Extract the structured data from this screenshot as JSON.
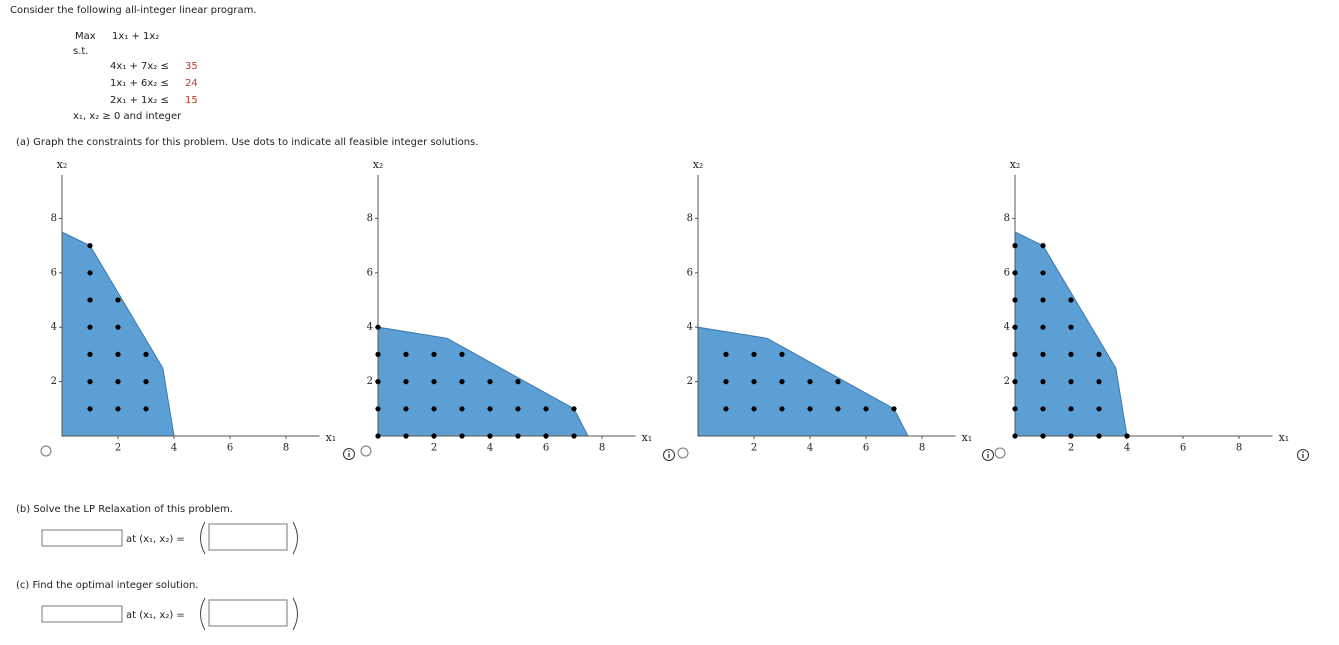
{
  "intro": "Consider the following all-integer linear program.",
  "program": {
    "objective_label": "Max",
    "objective": "1x₁ + 1x₂",
    "st": "s.t.",
    "constraints": [
      {
        "lhs": "4x₁ + 7x₂ ≤",
        "rhs": 35
      },
      {
        "lhs": "1x₁ + 6x₂ ≤",
        "rhs": 24
      },
      {
        "lhs": "2x₁ + 1x₂ ≤",
        "rhs": 15
      }
    ],
    "nonneg": "x₁, x₂ ≥ 0 and integer"
  },
  "part_a": "(a)  Graph the constraints for this problem. Use dots to indicate all feasible integer solutions.",
  "graphs": [
    {
      "xlim": [
        0,
        9.2
      ],
      "ylim": [
        0,
        9.6
      ],
      "xticks": [
        2,
        4,
        6,
        8
      ],
      "yticks": [
        2,
        4,
        6,
        8
      ],
      "x_label": "x₁",
      "y_label": "x₂",
      "region_color": "#5b9fd4",
      "region": {
        "x": [
          0,
          0,
          1,
          3.6,
          4
        ],
        "y": [
          0,
          7.5,
          7,
          2.5,
          0
        ]
      },
      "points": {
        "x": [
          1,
          1,
          1,
          2,
          1,
          2,
          1,
          2,
          3,
          1,
          2,
          3,
          1,
          2,
          3
        ],
        "y": [
          7,
          6,
          5,
          5,
          4,
          4,
          3,
          3,
          3,
          2,
          2,
          2,
          1,
          1,
          1
        ]
      }
    },
    {
      "xlim": [
        0,
        9.2
      ],
      "ylim": [
        0,
        9.6
      ],
      "xticks": [
        2,
        4,
        6,
        8
      ],
      "yticks": [
        2,
        4,
        6,
        8
      ],
      "x_label": "x₁",
      "y_label": "x₂",
      "region_color": "#5b9fd4",
      "region": {
        "x": [
          0,
          0,
          2.47,
          7,
          7.5
        ],
        "y": [
          0,
          4,
          3.59,
          1,
          0
        ]
      },
      "points": {
        "x": [
          0,
          0,
          1,
          2,
          3,
          0,
          1,
          2,
          3,
          4,
          5,
          0,
          1,
          2,
          3,
          4,
          5,
          6,
          7,
          0,
          1,
          2,
          3,
          4,
          5,
          6,
          7
        ],
        "y": [
          4,
          3,
          3,
          3,
          3,
          2,
          2,
          2,
          2,
          2,
          2,
          1,
          1,
          1,
          1,
          1,
          1,
          1,
          1,
          0,
          0,
          0,
          0,
          0,
          0,
          0,
          0
        ]
      }
    },
    {
      "xlim": [
        0,
        9.2
      ],
      "ylim": [
        0,
        9.6
      ],
      "xticks": [
        2,
        4,
        6,
        8
      ],
      "yticks": [
        2,
        4,
        6,
        8
      ],
      "x_label": "x₁",
      "y_label": "x₂",
      "region_color": "#5b9fd4",
      "region": {
        "x": [
          0,
          0,
          2.47,
          7,
          7.5
        ],
        "y": [
          0,
          4,
          3.59,
          1,
          0
        ]
      },
      "points": {
        "x": [
          1,
          2,
          3,
          1,
          2,
          3,
          4,
          5,
          1,
          2,
          3,
          4,
          5,
          6,
          7
        ],
        "y": [
          3,
          3,
          3,
          2,
          2,
          2,
          2,
          2,
          1,
          1,
          1,
          1,
          1,
          1,
          1
        ]
      }
    },
    {
      "xlim": [
        0,
        9.2
      ],
      "ylim": [
        0,
        9.6
      ],
      "xticks": [
        2,
        4,
        6,
        8
      ],
      "yticks": [
        2,
        4,
        6,
        8
      ],
      "x_label": "x₁",
      "y_label": "x₂",
      "region_color": "#5b9fd4",
      "region": {
        "x": [
          0,
          0,
          1,
          3.6,
          4
        ],
        "y": [
          0,
          7.5,
          7,
          2.5,
          0
        ]
      },
      "points": {
        "x": [
          0,
          1,
          0,
          1,
          0,
          1,
          2,
          0,
          1,
          2,
          0,
          1,
          2,
          3,
          0,
          1,
          2,
          3,
          0,
          1,
          2,
          3,
          0,
          1,
          2,
          3,
          4
        ],
        "y": [
          7,
          7,
          6,
          6,
          5,
          5,
          5,
          4,
          4,
          4,
          3,
          3,
          3,
          3,
          2,
          2,
          2,
          2,
          1,
          1,
          1,
          1,
          0,
          0,
          0,
          0,
          0
        ]
      }
    }
  ],
  "part_b": {
    "prompt": "(b)  Solve the LP Relaxation of this problem.",
    "at": "at (x₁, x₂) ="
  },
  "part_c": {
    "prompt": "(c)  Find the optimal integer solution.",
    "at": "at (x₁, x₂) ="
  }
}
